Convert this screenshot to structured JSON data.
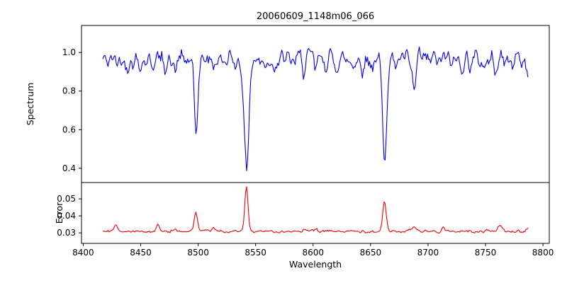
{
  "figure": {
    "background": "#ffffff",
    "axis_color": "#000000"
  },
  "chart_data": {
    "type": "line",
    "title": "20060609_1148m06_066",
    "xlabel": "Wavelength",
    "xlim": [
      8398.5,
      8805.5
    ],
    "x_ticks": [
      "8400",
      "8450",
      "8500",
      "8550",
      "8600",
      "8650",
      "8700",
      "8750",
      "8800"
    ],
    "x_tick_values": [
      8400,
      8450,
      8500,
      8550,
      8600,
      8650,
      8700,
      8750,
      8800
    ],
    "x_data_range": [
      8417,
      8787
    ],
    "sample_step": 0.9,
    "noise_seed": 42,
    "grid": false,
    "legend": "none",
    "panels": [
      {
        "name": "spectrum",
        "ylabel": "Spectrum",
        "color": "#0000ee",
        "ylim": [
          0.326,
          1.14
        ],
        "y_ticks": [
          "0.4",
          "0.6",
          "0.8",
          "1.0"
        ],
        "y_tick_values": [
          0.4,
          0.6,
          0.8,
          1.0
        ],
        "continuum": 0.958,
        "noise_amplitude": 0.04,
        "absorption_lines": [
          {
            "center": 8498,
            "depth": 0.4,
            "sigma": 1.5
          },
          {
            "center": 8542,
            "depth": 0.585,
            "sigma": 1.9
          },
          {
            "center": 8662,
            "depth": 0.515,
            "sigma": 1.7
          },
          {
            "center": 8688,
            "depth": 0.18,
            "sigma": 1.3
          }
        ]
      },
      {
        "name": "error",
        "ylabel": "Error",
        "color": "#ee0000",
        "ylim": [
          0.0238,
          0.0596
        ],
        "y_ticks": [
          "0.03",
          "0.04",
          "0.05"
        ],
        "y_tick_values": [
          0.03,
          0.04,
          0.05
        ],
        "baseline": 0.0306,
        "noise_amplitude": 0.0012,
        "spikes": [
          {
            "center": 8428,
            "amp": 0.004,
            "sigma": 1.6
          },
          {
            "center": 8465,
            "amp": 0.0035,
            "sigma": 1.5
          },
          {
            "center": 8498,
            "amp": 0.0115,
            "sigma": 1.4
          },
          {
            "center": 8513,
            "amp": 0.0022,
            "sigma": 1.4
          },
          {
            "center": 8542,
            "amp": 0.0262,
            "sigma": 1.4
          },
          {
            "center": 8662,
            "amp": 0.0185,
            "sigma": 1.4
          },
          {
            "center": 8688,
            "amp": 0.003,
            "sigma": 1.3
          },
          {
            "center": 8713,
            "amp": 0.0025,
            "sigma": 1.4
          },
          {
            "center": 8763,
            "amp": 0.004,
            "sigma": 1.6
          }
        ]
      }
    ]
  }
}
